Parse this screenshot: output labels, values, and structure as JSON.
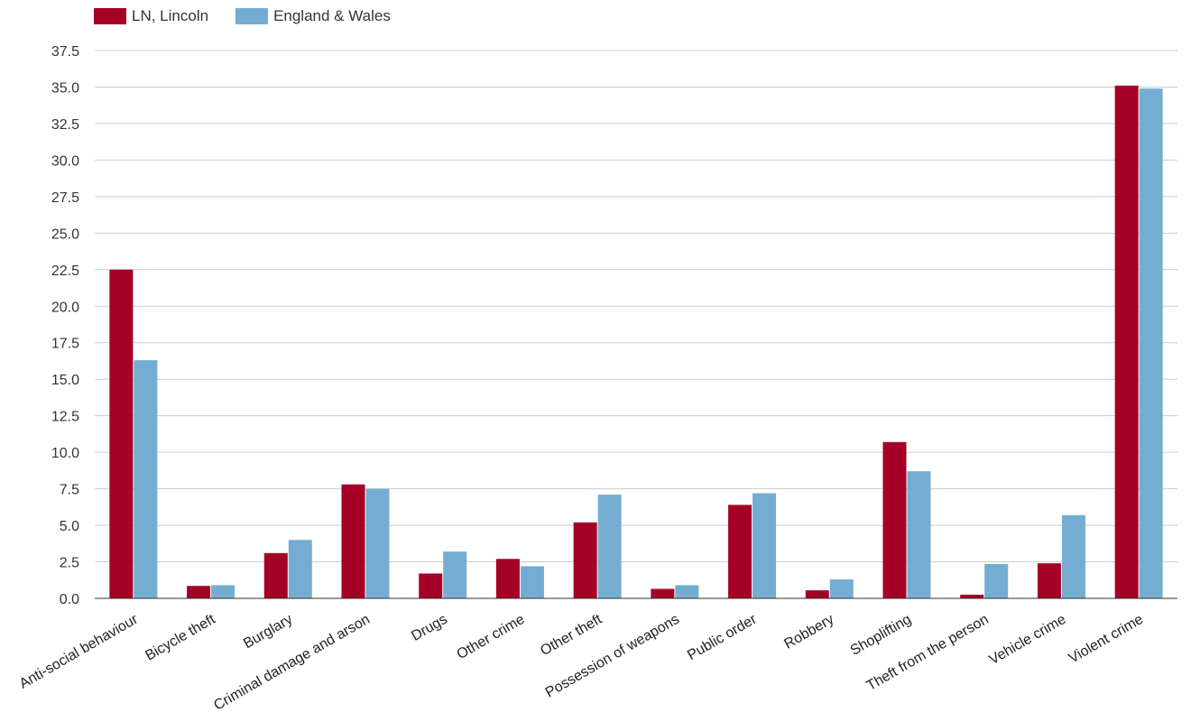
{
  "chart_data": {
    "type": "bar",
    "categories": [
      "Anti-social behaviour",
      "Bicycle theft",
      "Burglary",
      "Criminal damage and arson",
      "Drugs",
      "Other crime",
      "Other theft",
      "Possession of weapons",
      "Public order",
      "Robbery",
      "Shoplifting",
      "Theft from the person",
      "Vehicle crime",
      "Violent crime"
    ],
    "series": [
      {
        "name": "LN, Lincoln",
        "color": "#a50026",
        "values": [
          22.5,
          0.85,
          3.1,
          7.8,
          1.7,
          2.7,
          5.2,
          0.65,
          6.4,
          0.55,
          10.7,
          0.25,
          2.4,
          35.1
        ]
      },
      {
        "name": "England & Wales",
        "color": "#74add1",
        "values": [
          16.3,
          0.9,
          4.0,
          7.5,
          3.2,
          2.2,
          7.1,
          0.9,
          7.2,
          1.3,
          8.7,
          2.35,
          5.7,
          34.9
        ]
      }
    ],
    "yticks": [
      "0.0",
      "2.5",
      "5.0",
      "7.5",
      "10.0",
      "12.5",
      "15.0",
      "17.5",
      "20.0",
      "22.5",
      "25.0",
      "27.5",
      "30.0",
      "32.5",
      "35.0",
      "37.5"
    ],
    "ylim": [
      0,
      37.5
    ],
    "grid": true,
    "legend_position": "top-left"
  }
}
